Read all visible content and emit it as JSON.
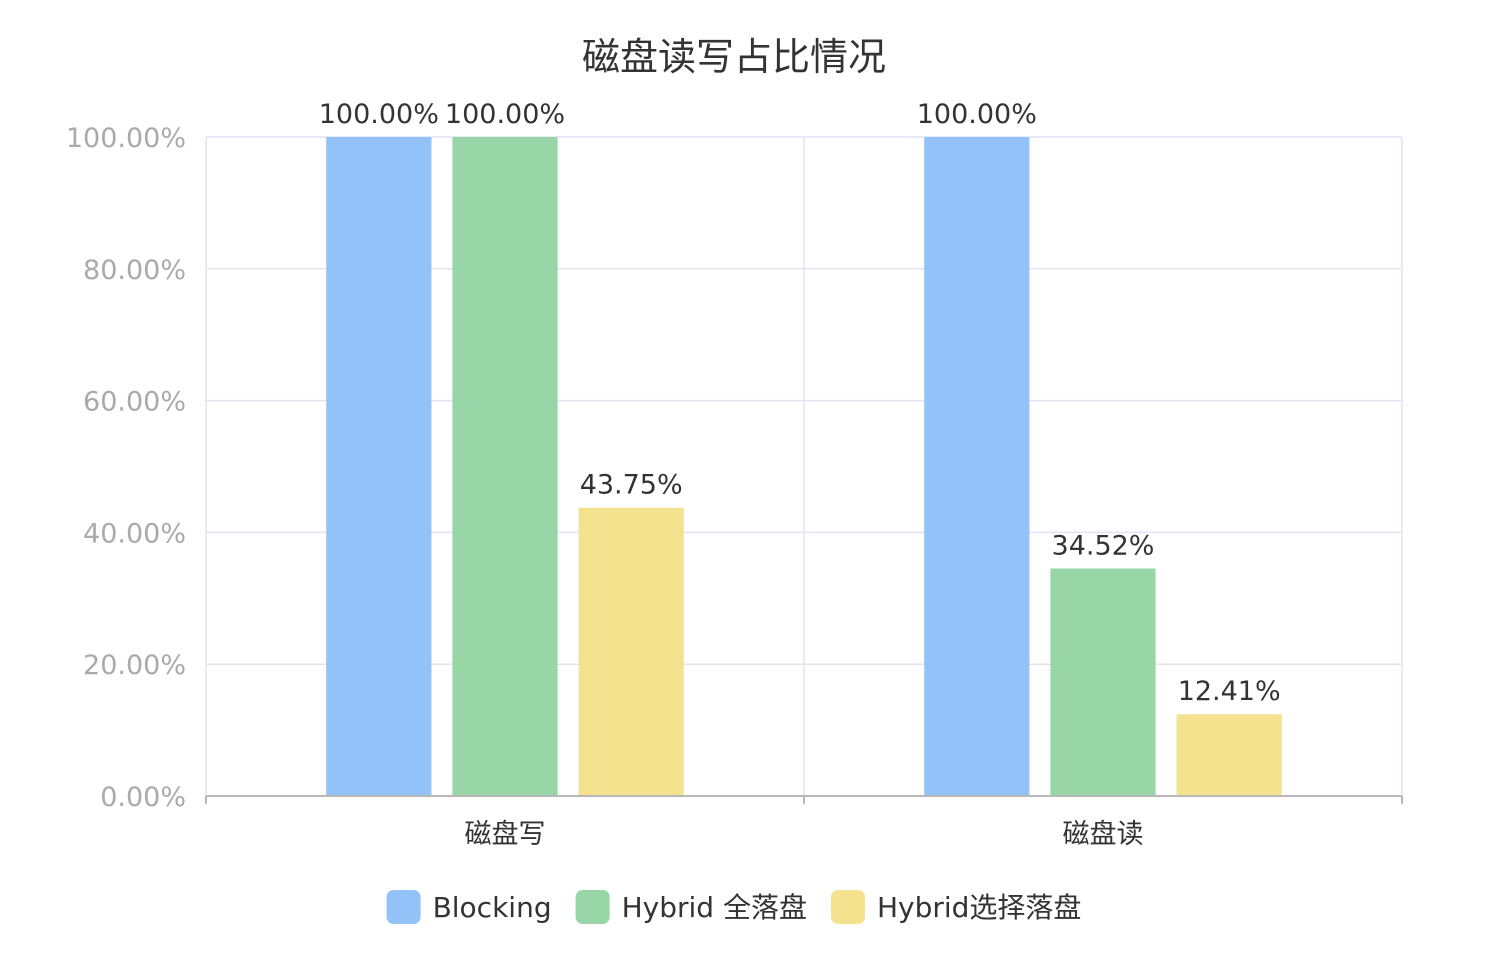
{
  "chart_data": {
    "type": "bar",
    "title": "磁盘读写占比情况",
    "categories": [
      "磁盘写",
      "磁盘读"
    ],
    "series": [
      {
        "name": "Blocking",
        "values": [
          100.0,
          100.0
        ],
        "labels": [
          "100.00%",
          "100.00%"
        ]
      },
      {
        "name": "Hybrid 全落盘",
        "values": [
          100.0,
          34.52
        ],
        "labels": [
          "100.00%",
          "34.52%"
        ]
      },
      {
        "name": "Hybrid选择落盘",
        "values": [
          43.75,
          12.41
        ],
        "labels": [
          "43.75%",
          "12.41%"
        ]
      }
    ],
    "ylim": [
      0,
      100
    ],
    "yticks": [
      "0.00%",
      "20.00%",
      "40.00%",
      "60.00%",
      "80.00%",
      "100.00%"
    ],
    "xlabel": "",
    "ylabel": "",
    "grid": true,
    "legend_position": "bottom-center",
    "colors": [
      "#93c2f8",
      "#98d6a8",
      "#f4e28f"
    ]
  }
}
